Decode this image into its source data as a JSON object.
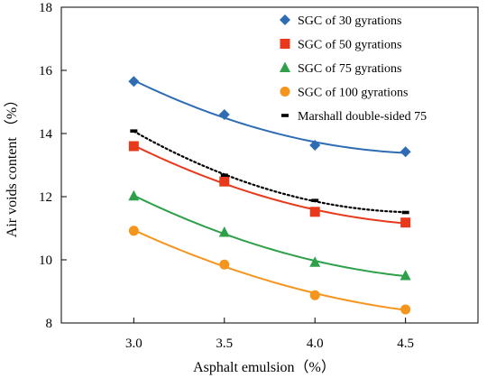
{
  "chart_data": {
    "type": "line",
    "title": "",
    "xlabel": "Asphalt emulsion（%）",
    "ylabel": "Air voids content （%）",
    "xlim": [
      2.6,
      4.9
    ],
    "ylim": [
      8,
      18
    ],
    "xticks": [
      3.0,
      3.5,
      4.0,
      4.5
    ],
    "xtick_labels": [
      "3.0",
      "3.5",
      "4.0",
      "4.5"
    ],
    "yticks": [
      8,
      10,
      12,
      14,
      16,
      18
    ],
    "ytick_labels": [
      "8",
      "10",
      "12",
      "14",
      "16",
      "18"
    ],
    "grid": false,
    "legend_position": "top-right",
    "x": [
      3.0,
      3.5,
      4.0,
      4.5
    ],
    "series": [
      {
        "name": "SGC of 30 gyrations",
        "values": [
          15.65,
          14.6,
          13.63,
          13.42
        ],
        "color": "#2e6db4",
        "marker": "diamond",
        "line": "solid"
      },
      {
        "name": "SGC of 50 gyrations",
        "values": [
          13.6,
          12.48,
          11.52,
          11.18
        ],
        "color": "#e8391d",
        "marker": "square",
        "line": "solid"
      },
      {
        "name": "SGC of 75 gyrations",
        "values": [
          12.02,
          10.87,
          9.92,
          9.5
        ],
        "color": "#2ea04a",
        "marker": "triangle",
        "line": "solid"
      },
      {
        "name": "SGC of 100 gyrations",
        "values": [
          10.92,
          9.85,
          8.88,
          8.43
        ],
        "color": "#f5951d",
        "marker": "circle",
        "line": "solid"
      },
      {
        "name": "Marshall double-sided 75",
        "values": [
          14.08,
          12.68,
          11.88,
          11.5
        ],
        "color": "#000000",
        "marker": "dash",
        "line": "dotted"
      }
    ]
  }
}
